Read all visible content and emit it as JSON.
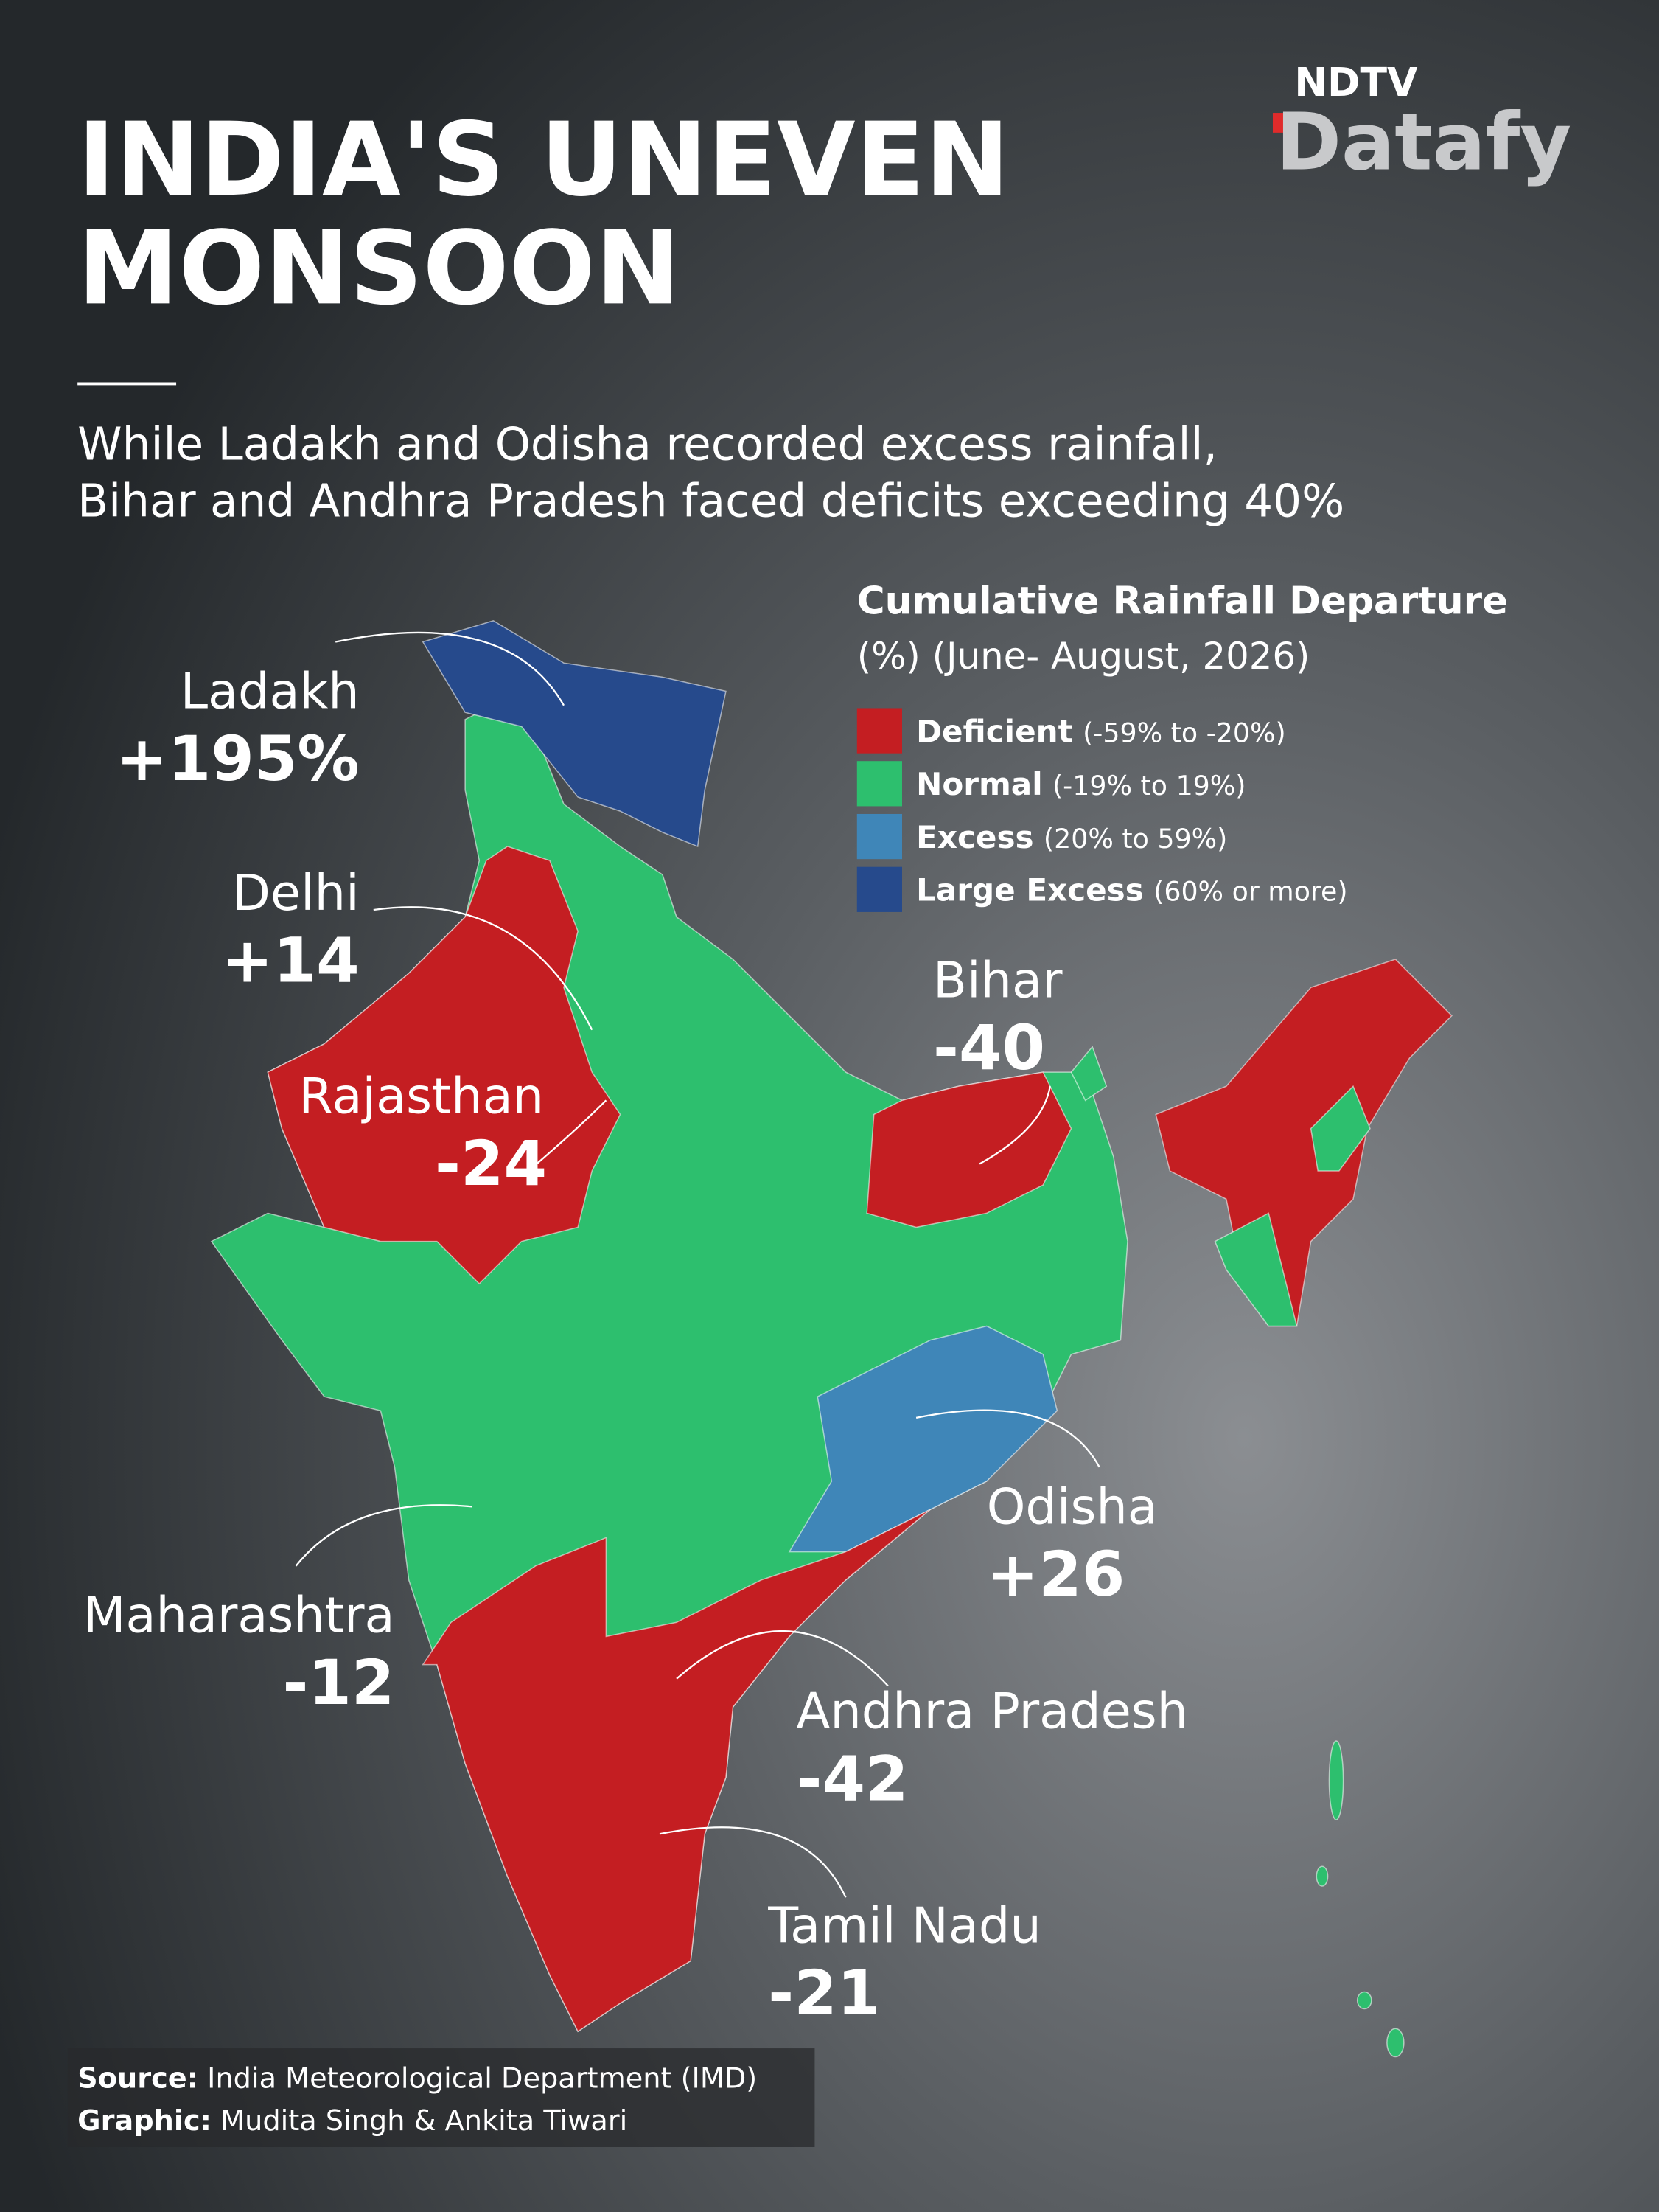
{
  "brand": {
    "top": "NDTV",
    "name": "Datafy"
  },
  "title": {
    "lines": [
      "INDIA'S UNEVEN",
      "MONSOON"
    ]
  },
  "subtitle": {
    "lines": [
      "While Ladakh and Odisha recorded excess rainfall,",
      "Bihar and Andhra Pradesh faced deficits exceeding 40%"
    ]
  },
  "legend": {
    "title": "Cumulative Rainfall Departure",
    "subtitle": "(%) (June- August, 2026)",
    "items": [
      {
        "label": "Deficient",
        "range": "(-59% to -20%)",
        "color": "#c41e22"
      },
      {
        "label": "Normal",
        "range": "(-19% to 19%)",
        "color": "#2dbf6e"
      },
      {
        "label": "Excess",
        "range": "(20% to 59%)",
        "color": "#3f86b8"
      },
      {
        "label": "Large Excess",
        "range": "(60% or more)",
        "color": "#264a8c"
      }
    ]
  },
  "regions": [
    {
      "name": "Ladakh",
      "value": "+195%"
    },
    {
      "name": "Delhi",
      "value": "+14"
    },
    {
      "name": "Rajasthan",
      "value": "-24"
    },
    {
      "name": "Bihar",
      "value": "-40"
    },
    {
      "name": "Odisha",
      "value": "+26"
    },
    {
      "name": "Maharashtra",
      "value": "-12"
    },
    {
      "name": "Andhra Pradesh",
      "value": "-42"
    },
    {
      "name": "Tamil Nadu",
      "value": "-21"
    }
  ],
  "footer": {
    "source_label": "Source:",
    "source": "India Meteorological Department (IMD)",
    "graphic_label": "Graphic:",
    "graphic": "Mudita Singh & Ankita Tiwari"
  }
}
